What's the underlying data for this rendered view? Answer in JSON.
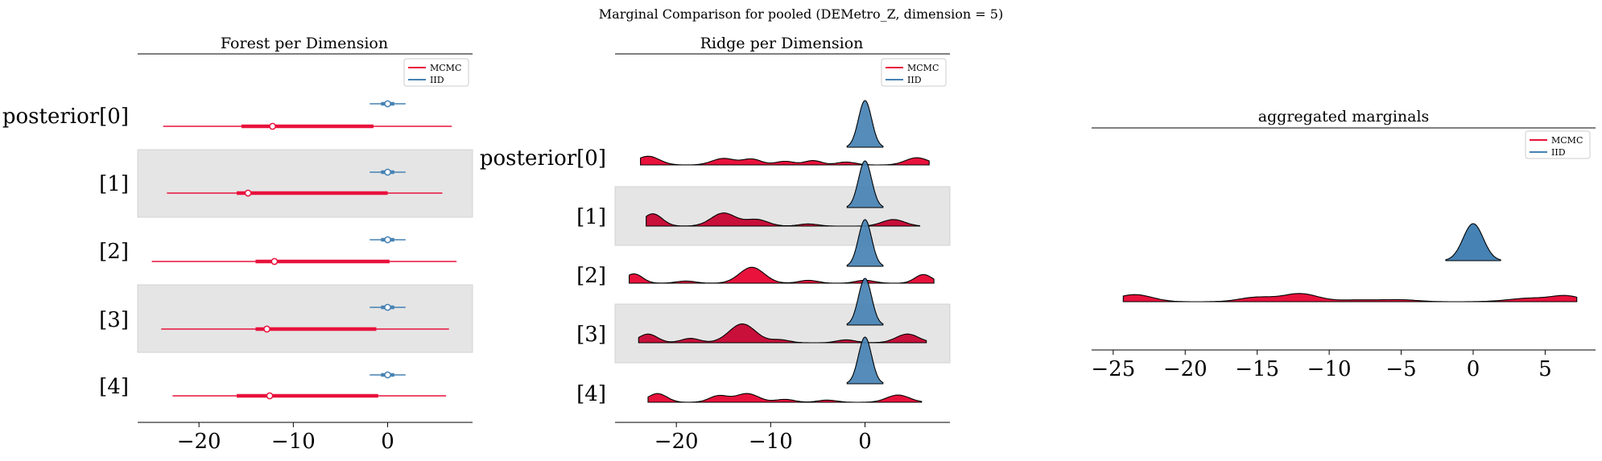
{
  "figure": {
    "suptitle": "Marginal Comparison for pooled (DEMetro_Z, dimension = 5)"
  },
  "colors": {
    "mcmc": "#e8123c",
    "mcmc_dark": "#c8103a",
    "iid": "#4682b4",
    "band": "#e5e5e5"
  },
  "legend": [
    "MCMC",
    "IID"
  ],
  "chart_data": [
    {
      "type": "forest",
      "title": "Forest per Dimension",
      "xlim": [
        -26.5,
        9.0
      ],
      "xticks": [
        -20,
        -10,
        0
      ],
      "xtick_labels": [
        "−20",
        "−10",
        "0"
      ],
      "ylabels": [
        "posterior[0]",
        "[1]",
        "[2]",
        "[3]",
        "[4]"
      ],
      "series": [
        {
          "name": "MCMC",
          "color": "#e8123c",
          "rows": [
            {
              "lo": -23.8,
              "q1": -15.5,
              "mean": -12.2,
              "q3": -1.5,
              "hi": 6.8
            },
            {
              "lo": -23.4,
              "q1": -16.0,
              "mean": -14.8,
              "q3": 0.0,
              "hi": 5.8
            },
            {
              "lo": -25.0,
              "q1": -14.0,
              "mean": -12.0,
              "q3": 0.2,
              "hi": 7.3
            },
            {
              "lo": -24.0,
              "q1": -14.0,
              "mean": -12.8,
              "q3": -1.2,
              "hi": 6.5
            },
            {
              "lo": -22.8,
              "q1": -16.0,
              "mean": -12.5,
              "q3": -1.0,
              "hi": 6.2
            }
          ]
        },
        {
          "name": "IID",
          "color": "#4682b4",
          "rows": [
            {
              "lo": -1.9,
              "q1": -0.7,
              "mean": 0.0,
              "q3": 0.7,
              "hi": 1.9
            },
            {
              "lo": -1.9,
              "q1": -0.7,
              "mean": 0.0,
              "q3": 0.7,
              "hi": 1.9
            },
            {
              "lo": -1.9,
              "q1": -0.7,
              "mean": 0.0,
              "q3": 0.7,
              "hi": 1.9
            },
            {
              "lo": -1.9,
              "q1": -0.7,
              "mean": 0.0,
              "q3": 0.7,
              "hi": 1.9
            },
            {
              "lo": -1.9,
              "q1": -0.7,
              "mean": 0.0,
              "q3": 0.7,
              "hi": 1.9
            }
          ]
        }
      ]
    },
    {
      "type": "ridge",
      "title": "Ridge per Dimension",
      "xlim": [
        -26.5,
        9.0
      ],
      "xticks": [
        -20,
        -10,
        0
      ],
      "xtick_labels": [
        "−20",
        "−10",
        "0"
      ],
      "ylabels": [
        "posterior[0]",
        "[1]",
        "[2]",
        "[3]",
        "[4]"
      ],
      "iid": {
        "mean": 0.0,
        "sd": 0.7,
        "range": [
          -1.9,
          1.9
        ]
      },
      "mcmc": [
        {
          "range": [
            -23.8,
            6.8
          ],
          "components": [
            [
              -23.0,
              1.2,
              0.6
            ],
            [
              -15.0,
              1.2,
              0.45
            ],
            [
              -12.0,
              1.0,
              0.4
            ],
            [
              -8.5,
              1.0,
              0.25
            ],
            [
              -5.5,
              0.9,
              0.3
            ],
            [
              -2.0,
              1.0,
              0.2
            ],
            [
              5.5,
              1.2,
              0.5
            ]
          ]
        },
        {
          "range": [
            -23.2,
            5.8
          ],
          "components": [
            [
              -22.5,
              1.0,
              0.85
            ],
            [
              -15.0,
              1.3,
              0.9
            ],
            [
              -11.5,
              1.2,
              0.45
            ],
            [
              -6.0,
              1.0,
              0.15
            ],
            [
              3.0,
              1.2,
              0.45
            ]
          ]
        },
        {
          "range": [
            -25.0,
            7.3
          ],
          "components": [
            [
              -24.5,
              0.9,
              0.65
            ],
            [
              -19.0,
              1.0,
              0.15
            ],
            [
              -12.0,
              1.3,
              1.1
            ],
            [
              -6.0,
              1.0,
              0.2
            ],
            [
              0.0,
              1.0,
              0.2
            ],
            [
              6.2,
              0.9,
              0.6
            ]
          ]
        },
        {
          "range": [
            -24.0,
            6.5
          ],
          "components": [
            [
              -23.0,
              1.0,
              0.6
            ],
            [
              -18.5,
              1.0,
              0.3
            ],
            [
              -13.0,
              1.4,
              1.3
            ],
            [
              -9.0,
              1.0,
              0.2
            ],
            [
              -2.0,
              1.0,
              0.2
            ],
            [
              4.5,
              1.2,
              0.6
            ]
          ]
        },
        {
          "range": [
            -23.0,
            6.0
          ],
          "components": [
            [
              -22.0,
              1.0,
              0.6
            ],
            [
              -15.5,
              1.0,
              0.45
            ],
            [
              -12.5,
              1.2,
              0.6
            ],
            [
              -8.5,
              1.0,
              0.2
            ],
            [
              -4.0,
              1.0,
              0.15
            ],
            [
              3.5,
              1.2,
              0.5
            ]
          ]
        }
      ]
    },
    {
      "type": "ridge",
      "title": "aggregated marginals",
      "xlim": [
        -26.5,
        8.5
      ],
      "xticks": [
        -25,
        -20,
        -15,
        -10,
        -5,
        0,
        5
      ],
      "xtick_labels": [
        "−25",
        "−20",
        "−15",
        "−10",
        "−5",
        "0",
        "5"
      ],
      "iid": {
        "mean": 0.0,
        "sd": 0.7,
        "range": [
          -1.9,
          1.9
        ]
      },
      "mcmc": {
        "range": [
          -24.3,
          7.2
        ],
        "components": [
          [
            -23.5,
            1.2,
            0.4
          ],
          [
            -15.0,
            1.2,
            0.25
          ],
          [
            -12.0,
            1.2,
            0.45
          ],
          [
            -8.0,
            1.5,
            0.1
          ],
          [
            -5.0,
            1.2,
            0.1
          ],
          [
            4.0,
            1.5,
            0.2
          ],
          [
            6.5,
            1.0,
            0.3
          ]
        ]
      }
    }
  ]
}
